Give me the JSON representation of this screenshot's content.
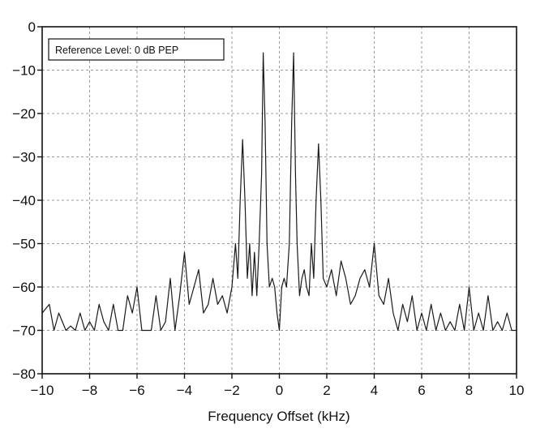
{
  "chart_data": {
    "type": "line",
    "title": "",
    "xlabel": "Frequency Offset (kHz)",
    "ylabel": "",
    "xlim": [
      -10,
      10
    ],
    "ylim": [
      -80,
      0
    ],
    "xticks": [
      -10,
      -8,
      -6,
      -4,
      -2,
      0,
      2,
      4,
      6,
      8,
      10
    ],
    "yticks": [
      0,
      -10,
      -20,
      -30,
      -40,
      -50,
      -60,
      -70,
      -80
    ],
    "xtick_labels": [
      "−10",
      "−8",
      "−6",
      "−4",
      "−2",
      "0",
      "2",
      "4",
      "6",
      "8",
      "10"
    ],
    "ytick_labels": [
      "0",
      "−10",
      "−20",
      "−30",
      "−40",
      "−50",
      "−60",
      "−70",
      "−80"
    ],
    "grid": true,
    "legend": {
      "text": "Reference Level: 0 dB PEP",
      "placement": "top-left"
    },
    "series": [
      {
        "x": [
          -10.0,
          -9.7,
          -9.5,
          -9.3,
          -9.0,
          -8.8,
          -8.6,
          -8.4,
          -8.2,
          -8.0,
          -7.8,
          -7.6,
          -7.4,
          -7.2,
          -7.0,
          -6.8,
          -6.6,
          -6.4,
          -6.2,
          -6.0,
          -5.8,
          -5.6,
          -5.4,
          -5.2,
          -5.0,
          -4.8,
          -4.6,
          -4.4,
          -4.2,
          -4.0,
          -3.8,
          -3.6,
          -3.4,
          -3.2,
          -3.0,
          -2.8,
          -2.6,
          -2.4,
          -2.2,
          -2.0,
          -1.85,
          -1.75,
          -1.65,
          -1.55,
          -1.45,
          -1.35,
          -1.25,
          -1.15,
          -1.05,
          -0.95,
          -0.85,
          -0.75,
          -0.68,
          -0.6,
          -0.52,
          -0.42,
          -0.3,
          -0.2,
          -0.1,
          0.0,
          0.1,
          0.2,
          0.3,
          0.42,
          0.52,
          0.6,
          0.68,
          0.75,
          0.85,
          0.95,
          1.05,
          1.15,
          1.25,
          1.35,
          1.45,
          1.55,
          1.65,
          1.75,
          1.85,
          2.0,
          2.2,
          2.4,
          2.6,
          2.8,
          3.0,
          3.2,
          3.4,
          3.6,
          3.8,
          4.0,
          4.2,
          4.4,
          4.6,
          4.8,
          5.0,
          5.2,
          5.4,
          5.6,
          5.8,
          6.0,
          6.2,
          6.4,
          6.6,
          6.8,
          7.0,
          7.2,
          7.4,
          7.6,
          7.8,
          8.0,
          8.2,
          8.4,
          8.6,
          8.8,
          9.0,
          9.2,
          9.4,
          9.6,
          9.8,
          10.0
        ],
        "y": [
          -66,
          -64,
          -70,
          -66,
          -70,
          -69,
          -70,
          -66,
          -70,
          -68,
          -70,
          -64,
          -68,
          -70,
          -64,
          -70,
          -70,
          -62,
          -66,
          -60,
          -70,
          -70,
          -70,
          -62,
          -70,
          -68,
          -58,
          -70,
          -62,
          -52,
          -64,
          -60,
          -56,
          -66,
          -64,
          -58,
          -64,
          -62,
          -66,
          -60,
          -50,
          -58,
          -40,
          -26,
          -40,
          -58,
          -50,
          -62,
          -52,
          -62,
          -50,
          -34,
          -6,
          -22,
          -50,
          -60,
          -58,
          -60,
          -66,
          -70,
          -60,
          -58,
          -60,
          -50,
          -22,
          -6,
          -34,
          -50,
          -62,
          -58,
          -56,
          -60,
          -62,
          -50,
          -58,
          -40,
          -27,
          -40,
          -58,
          -60,
          -56,
          -62,
          -54,
          -58,
          -64,
          -62,
          -58,
          -56,
          -60,
          -50,
          -62,
          -64,
          -58,
          -66,
          -70,
          -64,
          -68,
          -62,
          -70,
          -66,
          -70,
          -64,
          -70,
          -66,
          -70,
          -68,
          -70,
          -64,
          -70,
          -60,
          -70,
          -66,
          -70,
          -62,
          -70,
          -68,
          -70,
          -66,
          -70,
          -70
        ]
      }
    ]
  }
}
